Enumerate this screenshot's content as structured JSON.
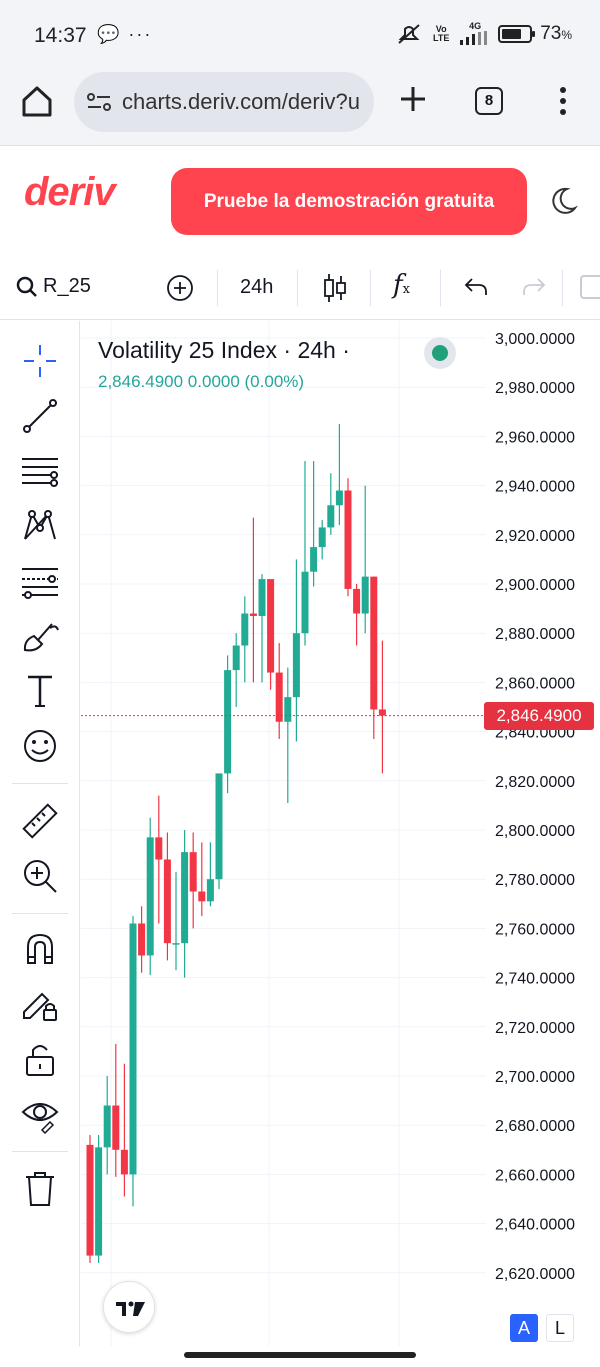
{
  "status_bar": {
    "time": "14:37",
    "left_icons": "💬 ···",
    "volte": "Vo LTE",
    "network": "4G",
    "battery_level": 0.73,
    "battery_text": "73",
    "battery_unit": "%"
  },
  "browser": {
    "url": "charts.deriv.com/deriv?u",
    "tab_count": "8"
  },
  "site_header": {
    "logo": "deriv",
    "demo_button": "Pruebe la demostración gratuita"
  },
  "toolbar": {
    "symbol": "R_25",
    "interval": "24h",
    "fx_label": "f",
    "fx_sub": "x"
  },
  "left_tools": [
    "crosshair-icon",
    "trend-line-icon",
    "parallel-lines-icon",
    "pattern-icon",
    "fib-icon",
    "brush-icon",
    "text-icon",
    "emoji-icon",
    "ruler-icon",
    "zoom-in-icon",
    "magnet-icon",
    "lock-draw-icon",
    "unlock-icon",
    "eye-icon",
    "trash-icon"
  ],
  "legend": {
    "title": "Volatility 25 Index · 24h ·",
    "values": "2,846.4900  0.0000 (0.00%)"
  },
  "colors": {
    "up": "#22ab94",
    "down": "#f23645",
    "brand": "#ff444f",
    "price_line": "#e53140"
  },
  "chart_data": {
    "type": "candlestick",
    "title": "Volatility 25 Index · 24h ·",
    "ylim": [
      2604,
      3000
    ],
    "y_ticks": [
      "3,000.0000",
      "2,980.0000",
      "2,960.0000",
      "2,940.0000",
      "2,920.0000",
      "2,900.0000",
      "2,880.0000",
      "2,860.0000",
      "2,840.0000",
      "2,820.0000",
      "2,800.0000",
      "2,780.0000",
      "2,760.0000",
      "2,740.0000",
      "2,720.0000",
      "2,700.0000",
      "2,680.0000",
      "2,660.0000",
      "2,640.0000",
      "2,620.0000"
    ],
    "y_tick_values": [
      3000,
      2980,
      2960,
      2940,
      2920,
      2900,
      2880,
      2860,
      2840,
      2820,
      2800,
      2780,
      2760,
      2740,
      2720,
      2700,
      2680,
      2660,
      2640,
      2620
    ],
    "last_price": 2846.49,
    "last_price_label": "2,846.4900",
    "candles": [
      {
        "o": 2672,
        "h": 2676,
        "l": 2624,
        "c": 2627
      },
      {
        "o": 2627,
        "h": 2676,
        "l": 2624,
        "c": 2671
      },
      {
        "o": 2671,
        "h": 2700,
        "l": 2660,
        "c": 2688
      },
      {
        "o": 2688,
        "h": 2713,
        "l": 2659,
        "c": 2670
      },
      {
        "o": 2670,
        "h": 2705,
        "l": 2651,
        "c": 2660
      },
      {
        "o": 2660,
        "h": 2765,
        "l": 2647,
        "c": 2762
      },
      {
        "o": 2762,
        "h": 2769,
        "l": 2742,
        "c": 2749
      },
      {
        "o": 2749,
        "h": 2805,
        "l": 2741,
        "c": 2797
      },
      {
        "o": 2797,
        "h": 2814,
        "l": 2762,
        "c": 2788
      },
      {
        "o": 2788,
        "h": 2799,
        "l": 2747,
        "c": 2754
      },
      {
        "o": 2754,
        "h": 2783,
        "l": 2743,
        "c": 2754
      },
      {
        "o": 2754,
        "h": 2800,
        "l": 2740,
        "c": 2791
      },
      {
        "o": 2791,
        "h": 2799,
        "l": 2760,
        "c": 2775
      },
      {
        "o": 2775,
        "h": 2795,
        "l": 2765,
        "c": 2771
      },
      {
        "o": 2771,
        "h": 2795,
        "l": 2769,
        "c": 2780
      },
      {
        "o": 2780,
        "h": 2822,
        "l": 2776,
        "c": 2823
      },
      {
        "o": 2823,
        "h": 2871,
        "l": 2815,
        "c": 2865
      },
      {
        "o": 2865,
        "h": 2880,
        "l": 2850,
        "c": 2875
      },
      {
        "o": 2875,
        "h": 2895,
        "l": 2860,
        "c": 2888
      },
      {
        "o": 2888,
        "h": 2927,
        "l": 2860,
        "c": 2887
      },
      {
        "o": 2887,
        "h": 2904,
        "l": 2860,
        "c": 2902
      },
      {
        "o": 2902,
        "h": 2900,
        "l": 2857,
        "c": 2864
      },
      {
        "o": 2864,
        "h": 2876,
        "l": 2837,
        "c": 2844
      },
      {
        "o": 2844,
        "h": 2866,
        "l": 2811,
        "c": 2854
      },
      {
        "o": 2854,
        "h": 2910,
        "l": 2836,
        "c": 2880
      },
      {
        "o": 2880,
        "h": 2950,
        "l": 2875,
        "c": 2905
      },
      {
        "o": 2905,
        "h": 2950,
        "l": 2899,
        "c": 2915
      },
      {
        "o": 2915,
        "h": 2926,
        "l": 2910,
        "c": 2923
      },
      {
        "o": 2923,
        "h": 2945,
        "l": 2920,
        "c": 2932
      },
      {
        "o": 2932,
        "h": 2965,
        "l": 2924,
        "c": 2938
      },
      {
        "o": 2938,
        "h": 2943,
        "l": 2895,
        "c": 2898
      },
      {
        "o": 2898,
        "h": 2900,
        "l": 2875,
        "c": 2888
      },
      {
        "o": 2888,
        "h": 2940,
        "l": 2880,
        "c": 2903
      },
      {
        "o": 2903,
        "h": 2903,
        "l": 2837,
        "c": 2849
      },
      {
        "o": 2849,
        "h": 2877,
        "l": 2823,
        "c": 2846.49
      }
    ]
  }
}
